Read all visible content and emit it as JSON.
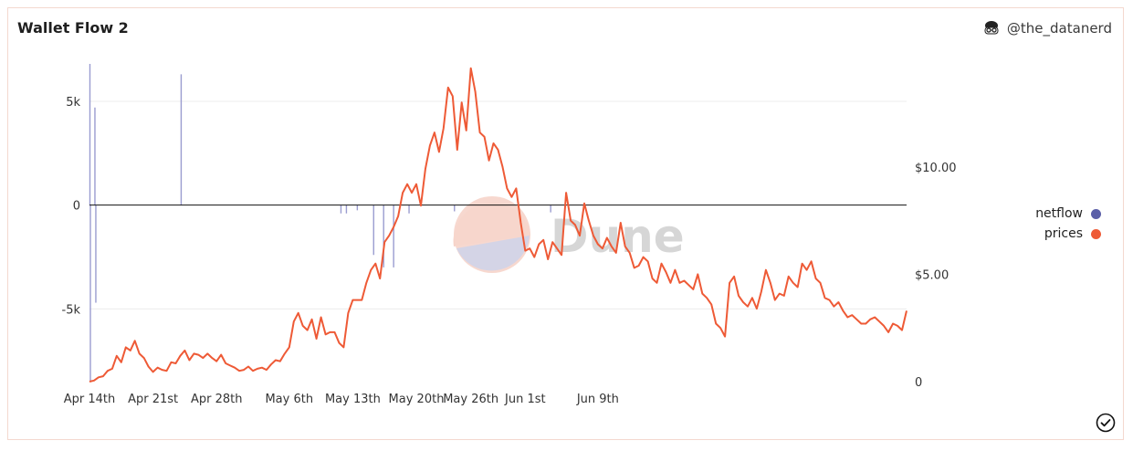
{
  "header": {
    "title": "Wallet Flow 2",
    "author": "@the_datanerd"
  },
  "watermark": {
    "text": "Dune"
  },
  "legend": [
    {
      "label": "netflow",
      "color": "#5b5fa8"
    },
    {
      "label": "prices",
      "color": "#ee5a36"
    }
  ],
  "chart_data": {
    "type": "line",
    "title": "Wallet Flow 2",
    "x_ticks": [
      "Apr 14th",
      "Apr 21st",
      "Apr 28th",
      "May 6th",
      "May 13th",
      "May 20th",
      "May 26th",
      "Jun 1st",
      "Jun 9th"
    ],
    "x_range": [
      "Apr 14th",
      "Jun 16th"
    ],
    "y_left": {
      "ticks": [
        "5k",
        "0",
        "-5k"
      ],
      "ylim": [
        -8500,
        6800
      ]
    },
    "y_right": {
      "ticks": [
        "$10.00",
        "$5.00",
        "0"
      ],
      "ylim": [
        0,
        14.8
      ]
    },
    "grid": true,
    "legend_position": "right",
    "series": [
      {
        "name": "netflow",
        "axis": "left",
        "type": "bar",
        "color": "#5b5fa8",
        "points": [
          {
            "x": 0.05,
            "y": 6800
          },
          {
            "x": 0.1,
            "y": -8500
          },
          {
            "x": 0.6,
            "y": 4700
          },
          {
            "x": 0.7,
            "y": -4700
          },
          {
            "x": 10.1,
            "y": 6300
          },
          {
            "x": 27.7,
            "y": -400
          },
          {
            "x": 28.3,
            "y": -400
          },
          {
            "x": 29.5,
            "y": -250
          },
          {
            "x": 31.3,
            "y": -2400
          },
          {
            "x": 32.4,
            "y": -3000
          },
          {
            "x": 33.5,
            "y": -3000
          },
          {
            "x": 35.2,
            "y": -400
          },
          {
            "x": 40.2,
            "y": -300
          },
          {
            "x": 50.8,
            "y": -350
          }
        ]
      },
      {
        "name": "prices",
        "axis": "right",
        "type": "line",
        "color": "#ee5a36",
        "points": [
          [
            0,
            0.0
          ],
          [
            0.5,
            0.05
          ],
          [
            1,
            0.2
          ],
          [
            1.5,
            0.25
          ],
          [
            2,
            0.5
          ],
          [
            2.5,
            0.6
          ],
          [
            3,
            1.2
          ],
          [
            3.5,
            0.9
          ],
          [
            4,
            1.6
          ],
          [
            4.5,
            1.45
          ],
          [
            5,
            1.9
          ],
          [
            5.5,
            1.3
          ],
          [
            6,
            1.1
          ],
          [
            6.5,
            0.7
          ],
          [
            7,
            0.45
          ],
          [
            7.5,
            0.65
          ],
          [
            8,
            0.55
          ],
          [
            8.5,
            0.5
          ],
          [
            9,
            0.9
          ],
          [
            9.5,
            0.85
          ],
          [
            10,
            1.2
          ],
          [
            10.5,
            1.45
          ],
          [
            11,
            1.0
          ],
          [
            11.5,
            1.3
          ],
          [
            12,
            1.25
          ],
          [
            12.5,
            1.1
          ],
          [
            13,
            1.3
          ],
          [
            13.5,
            1.1
          ],
          [
            14,
            0.95
          ],
          [
            14.5,
            1.25
          ],
          [
            15,
            0.85
          ],
          [
            15.5,
            0.75
          ],
          [
            16,
            0.65
          ],
          [
            16.5,
            0.5
          ],
          [
            17,
            0.55
          ],
          [
            17.5,
            0.7
          ],
          [
            18,
            0.5
          ],
          [
            18.5,
            0.6
          ],
          [
            19,
            0.65
          ],
          [
            19.5,
            0.55
          ],
          [
            20,
            0.8
          ],
          [
            20.5,
            1.0
          ],
          [
            21,
            0.95
          ],
          [
            21.5,
            1.3
          ],
          [
            22,
            1.6
          ],
          [
            22.5,
            2.8
          ],
          [
            23,
            3.2
          ],
          [
            23.5,
            2.6
          ],
          [
            24,
            2.4
          ],
          [
            24.5,
            2.9
          ],
          [
            25,
            2.0
          ],
          [
            25.5,
            3.0
          ],
          [
            26,
            2.2
          ],
          [
            26.5,
            2.3
          ],
          [
            27,
            2.3
          ],
          [
            27.5,
            1.8
          ],
          [
            28,
            1.6
          ],
          [
            28.5,
            3.2
          ],
          [
            29,
            3.8
          ],
          [
            29.5,
            3.8
          ],
          [
            30,
            3.8
          ],
          [
            30.5,
            4.6
          ],
          [
            31,
            5.2
          ],
          [
            31.5,
            5.5
          ],
          [
            32,
            4.8
          ],
          [
            32.5,
            6.5
          ],
          [
            33,
            6.8
          ],
          [
            33.5,
            7.2
          ],
          [
            34,
            7.7
          ],
          [
            34.5,
            8.8
          ],
          [
            35,
            9.2
          ],
          [
            35.5,
            8.8
          ],
          [
            36,
            9.2
          ],
          [
            36.5,
            8.2
          ],
          [
            37,
            9.9
          ],
          [
            37.5,
            11.0
          ],
          [
            38,
            11.6
          ],
          [
            38.5,
            10.7
          ],
          [
            39,
            11.8
          ],
          [
            39.5,
            13.7
          ],
          [
            40,
            13.3
          ],
          [
            40.5,
            10.8
          ],
          [
            41,
            13.0
          ],
          [
            41.5,
            11.7
          ],
          [
            42,
            14.6
          ],
          [
            42.5,
            13.5
          ],
          [
            43,
            11.6
          ],
          [
            43.5,
            11.4
          ],
          [
            44,
            10.3
          ],
          [
            44.5,
            11.1
          ],
          [
            45,
            10.8
          ],
          [
            45.5,
            10.0
          ],
          [
            46,
            9.0
          ],
          [
            46.5,
            8.6
          ],
          [
            47,
            9.0
          ],
          [
            47.5,
            7.4
          ],
          [
            48,
            6.1
          ],
          [
            48.5,
            6.2
          ],
          [
            49,
            5.8
          ],
          [
            49.5,
            6.4
          ],
          [
            50,
            6.6
          ],
          [
            50.5,
            5.7
          ],
          [
            51,
            6.5
          ],
          [
            51.5,
            6.2
          ],
          [
            52,
            5.9
          ],
          [
            52.5,
            8.8
          ],
          [
            53,
            7.5
          ],
          [
            53.5,
            7.3
          ],
          [
            54,
            6.8
          ],
          [
            54.5,
            8.3
          ],
          [
            55,
            7.5
          ],
          [
            55.5,
            6.8
          ],
          [
            56,
            6.4
          ],
          [
            56.5,
            6.2
          ],
          [
            57,
            6.7
          ],
          [
            57.5,
            6.3
          ],
          [
            58,
            6.0
          ],
          [
            58.5,
            7.4
          ],
          [
            59,
            6.3
          ],
          [
            59.5,
            6.0
          ],
          [
            60,
            5.3
          ],
          [
            60.5,
            5.4
          ],
          [
            61,
            5.8
          ],
          [
            61.5,
            5.6
          ],
          [
            62,
            4.8
          ],
          [
            62.5,
            4.6
          ],
          [
            63,
            5.5
          ],
          [
            63.5,
            5.1
          ],
          [
            64,
            4.6
          ],
          [
            64.5,
            5.2
          ],
          [
            65,
            4.6
          ],
          [
            65.5,
            4.7
          ],
          [
            66,
            4.5
          ],
          [
            66.5,
            4.3
          ],
          [
            67,
            5.0
          ],
          [
            67.5,
            4.1
          ],
          [
            68,
            3.9
          ],
          [
            68.5,
            3.6
          ],
          [
            69,
            2.7
          ],
          [
            69.5,
            2.5
          ],
          [
            70,
            2.1
          ],
          [
            70.5,
            4.6
          ],
          [
            71,
            4.9
          ],
          [
            71.5,
            4.0
          ],
          [
            72,
            3.7
          ],
          [
            72.5,
            3.5
          ],
          [
            73,
            3.9
          ],
          [
            73.5,
            3.4
          ],
          [
            74,
            4.2
          ],
          [
            74.5,
            5.2
          ],
          [
            75,
            4.6
          ],
          [
            75.5,
            3.8
          ],
          [
            76,
            4.1
          ],
          [
            76.5,
            4.0
          ],
          [
            77,
            4.9
          ],
          [
            77.5,
            4.6
          ],
          [
            78,
            4.4
          ],
          [
            78.5,
            5.5
          ],
          [
            79,
            5.2
          ],
          [
            79.5,
            5.6
          ],
          [
            80,
            4.8
          ],
          [
            80.5,
            4.6
          ],
          [
            81,
            3.9
          ],
          [
            81.5,
            3.8
          ],
          [
            82,
            3.5
          ],
          [
            82.5,
            3.7
          ],
          [
            83,
            3.3
          ],
          [
            83.5,
            3.0
          ],
          [
            84,
            3.1
          ],
          [
            84.5,
            2.9
          ],
          [
            85,
            2.7
          ],
          [
            85.5,
            2.7
          ],
          [
            86,
            2.9
          ],
          [
            86.5,
            3.0
          ],
          [
            87,
            2.8
          ],
          [
            87.5,
            2.6
          ],
          [
            88,
            2.3
          ],
          [
            88.5,
            2.7
          ],
          [
            89,
            2.6
          ],
          [
            89.5,
            2.4
          ],
          [
            90,
            3.3
          ]
        ]
      }
    ]
  }
}
